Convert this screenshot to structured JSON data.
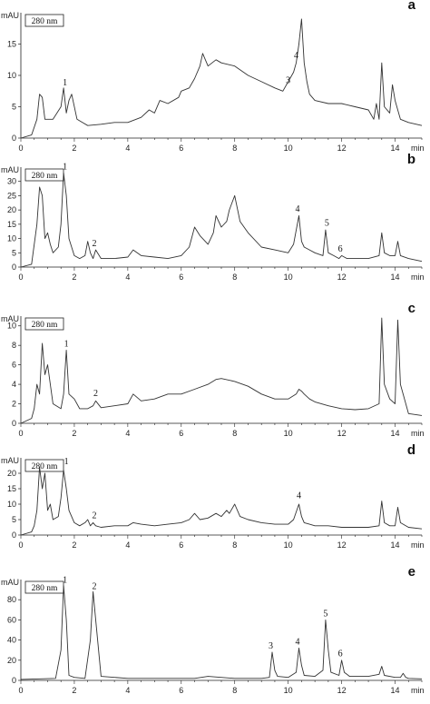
{
  "chart_data": [
    {
      "type": "line",
      "panel_label": "a",
      "wavelength_label": "280 nm",
      "ylabel": "mAU",
      "xlabel": "min",
      "xlim": [
        0,
        15
      ],
      "ylim": [
        0,
        20
      ],
      "xticks": [
        0,
        2,
        4,
        6,
        8,
        10,
        12,
        14
      ],
      "yticks": [
        0,
        5,
        10,
        15
      ],
      "series": [
        {
          "x": [
            0,
            0.4,
            0.6,
            0.7,
            0.8,
            0.9,
            1.2,
            1.5,
            1.6,
            1.7,
            1.8,
            1.9,
            2.1,
            2.3,
            2.5,
            3,
            3.5,
            4,
            4.5,
            4.8,
            5,
            5.2,
            5.5,
            5.9,
            6,
            6.3,
            6.5,
            6.7,
            6.8,
            7,
            7.3,
            7.5,
            8,
            8.5,
            9,
            9.5,
            9.8,
            10,
            10.2,
            10.3,
            10.4,
            10.5,
            10.6,
            10.7,
            10.8,
            11,
            11.5,
            12,
            12.5,
            13,
            13.2,
            13.3,
            13.4,
            13.5,
            13.6,
            13.8,
            13.9,
            14,
            14.2,
            14.5,
            15
          ],
          "y": [
            0,
            0.5,
            3,
            7,
            6.5,
            3,
            3,
            5,
            8,
            4,
            6,
            7,
            3,
            2.5,
            2,
            2.2,
            2.5,
            2.5,
            3.3,
            4.5,
            4,
            6,
            5.5,
            6.5,
            7.5,
            8,
            9.5,
            11.5,
            13.5,
            11.5,
            12.5,
            12,
            11.5,
            10,
            9,
            8,
            7.5,
            9,
            10.5,
            12,
            15,
            19,
            12,
            9,
            7,
            6,
            5.5,
            5.5,
            5,
            4.5,
            3,
            5.5,
            3,
            12,
            5,
            4,
            8.5,
            6,
            3,
            2.5,
            2
          ]
        }
      ],
      "peak_labels": [
        {
          "text": "1",
          "x": 1.65,
          "y": 8
        },
        {
          "text": "3",
          "x": 10.0,
          "y": 8.3
        },
        {
          "text": "4",
          "x": 10.3,
          "y": 12.3
        }
      ]
    },
    {
      "type": "line",
      "panel_label": "b",
      "wavelength_label": "280 nm",
      "ylabel": "mAU",
      "xlabel": "min",
      "xlim": [
        0,
        15
      ],
      "ylim": [
        0,
        35
      ],
      "xticks": [
        0,
        2,
        4,
        6,
        8,
        10,
        12,
        14
      ],
      "yticks": [
        0,
        5,
        10,
        15,
        20,
        25,
        30
      ],
      "series": [
        {
          "x": [
            0,
            0.4,
            0.6,
            0.7,
            0.8,
            0.9,
            1,
            1.1,
            1.2,
            1.4,
            1.5,
            1.6,
            1.7,
            1.8,
            2,
            2.2,
            2.4,
            2.5,
            2.6,
            2.7,
            2.8,
            3,
            3.5,
            4,
            4.2,
            4.5,
            5,
            5.5,
            6,
            6.3,
            6.5,
            6.7,
            7,
            7.2,
            7.3,
            7.5,
            7.7,
            7.8,
            8,
            8.2,
            8.5,
            9,
            9.5,
            10,
            10.2,
            10.4,
            10.5,
            10.6,
            10.8,
            11,
            11.3,
            11.4,
            11.5,
            11.7,
            11.9,
            12,
            12.2,
            12.5,
            13,
            13.4,
            13.5,
            13.6,
            13.8,
            14,
            14.1,
            14.2,
            14.5,
            15
          ],
          "y": [
            0,
            1,
            15,
            28,
            25,
            10,
            12,
            8,
            5,
            7,
            15,
            33,
            25,
            10,
            4,
            3,
            4,
            9,
            5,
            3,
            6,
            3,
            3,
            3.5,
            6,
            4,
            3.5,
            3,
            4,
            7,
            14,
            11,
            8,
            12,
            18,
            14,
            16,
            20,
            25,
            16,
            12,
            7,
            6,
            5,
            8,
            18,
            9,
            7,
            6,
            5,
            4,
            13,
            5,
            4,
            3,
            4,
            3,
            3,
            3,
            4,
            12,
            5,
            4,
            4,
            9,
            4,
            3,
            2
          ]
        }
      ],
      "peak_labels": [
        {
          "text": "1",
          "x": 1.65,
          "y": 33.3
        },
        {
          "text": "2",
          "x": 2.75,
          "y": 6.3
        },
        {
          "text": "4",
          "x": 10.35,
          "y": 18.5
        },
        {
          "text": "5",
          "x": 11.45,
          "y": 13.5
        },
        {
          "text": "6",
          "x": 11.95,
          "y": 4.5
        }
      ]
    },
    {
      "type": "line",
      "panel_label": "c",
      "wavelength_label": "280 nm",
      "ylabel": "mAU",
      "xlabel": "min",
      "xlim": [
        0,
        15
      ],
      "ylim": [
        0,
        11
      ],
      "xticks": [
        0,
        2,
        4,
        6,
        8,
        10,
        12,
        14
      ],
      "yticks": [
        0,
        2,
        4,
        6,
        8,
        10
      ],
      "series": [
        {
          "x": [
            0,
            0.4,
            0.5,
            0.6,
            0.7,
            0.8,
            0.9,
            1,
            1.2,
            1.5,
            1.6,
            1.7,
            1.8,
            2,
            2.2,
            2.5,
            2.7,
            2.8,
            3,
            3.5,
            4,
            4.2,
            4.5,
            5,
            5.5,
            6,
            6.5,
            7,
            7.3,
            7.5,
            8,
            8.5,
            9,
            9.5,
            10,
            10.3,
            10.4,
            10.5,
            10.6,
            10.8,
            11,
            11.5,
            12,
            12.5,
            13,
            13.4,
            13.5,
            13.6,
            13.8,
            14,
            14.1,
            14.2,
            14.5,
            15
          ],
          "y": [
            0,
            0.5,
            1.5,
            4,
            3,
            8.2,
            5,
            6,
            2,
            1.5,
            3,
            7.5,
            3,
            2.5,
            1.5,
            1.5,
            1.8,
            2.3,
            1.6,
            1.8,
            2,
            3,
            2.3,
            2.5,
            3,
            3,
            3.5,
            4,
            4.5,
            4.6,
            4.3,
            3.8,
            3,
            2.5,
            2.5,
            3,
            3.5,
            3.3,
            3,
            2.5,
            2.2,
            1.8,
            1.5,
            1.4,
            1.5,
            2,
            10.8,
            4,
            2.5,
            2,
            10.6,
            4,
            1,
            0.8
          ]
        }
      ],
      "peak_labels": [
        {
          "text": "1",
          "x": 1.7,
          "y": 7.6
        },
        {
          "text": "2",
          "x": 2.8,
          "y": 2.5
        }
      ]
    },
    {
      "type": "line",
      "panel_label": "d",
      "wavelength_label": "280 nm",
      "ylabel": "mAU",
      "xlabel": "min",
      "xlim": [
        0,
        15
      ],
      "ylim": [
        0,
        25
      ],
      "xticks": [
        0,
        2,
        4,
        6,
        8,
        10,
        12,
        14
      ],
      "yticks": [
        0,
        5,
        10,
        15,
        20
      ],
      "series": [
        {
          "x": [
            0,
            0.4,
            0.5,
            0.6,
            0.7,
            0.8,
            0.9,
            1,
            1.1,
            1.2,
            1.4,
            1.5,
            1.6,
            1.7,
            1.8,
            2,
            2.2,
            2.4,
            2.5,
            2.6,
            2.7,
            2.8,
            3,
            3.5,
            4,
            4.2,
            4.5,
            5,
            5.5,
            6,
            6.3,
            6.5,
            6.7,
            7,
            7.3,
            7.5,
            7.7,
            7.8,
            8,
            8.2,
            8.5,
            9,
            9.5,
            10,
            10.2,
            10.4,
            10.5,
            10.6,
            10.8,
            11,
            11.5,
            12,
            12.5,
            13,
            13.4,
            13.5,
            13.6,
            13.8,
            14,
            14.1,
            14.2,
            14.5,
            15
          ],
          "y": [
            0,
            1,
            3,
            8,
            22,
            15,
            20,
            8,
            10,
            5,
            6,
            12,
            21,
            15,
            8,
            4,
            3,
            4,
            5,
            3,
            4,
            3,
            2.5,
            3,
            3,
            4,
            3.5,
            3,
            3.5,
            4,
            5,
            7,
            5,
            5.5,
            7,
            6,
            8,
            7,
            10,
            6,
            5,
            4,
            3.5,
            3.5,
            5,
            10,
            6,
            4,
            3.5,
            3,
            3,
            2.5,
            2.5,
            2.5,
            3,
            11,
            4,
            3,
            3,
            9,
            4,
            2.5,
            2
          ]
        }
      ],
      "peak_labels": [
        {
          "text": "1",
          "x": 1.7,
          "y": 22
        },
        {
          "text": "2",
          "x": 2.75,
          "y": 4.5
        },
        {
          "text": "4",
          "x": 10.4,
          "y": 11
        }
      ]
    },
    {
      "type": "line",
      "panel_label": "e",
      "wavelength_label": "280 nm",
      "ylabel": "mAU",
      "xlabel": "min",
      "xlim": [
        0,
        15
      ],
      "ylim": [
        0,
        100
      ],
      "xticks": [
        0,
        2,
        4,
        6,
        8,
        10,
        12,
        14
      ],
      "yticks": [
        0,
        20,
        40,
        60,
        80
      ],
      "series": [
        {
          "x": [
            0,
            1.3,
            1.5,
            1.6,
            1.7,
            1.8,
            2,
            2.4,
            2.6,
            2.7,
            2.8,
            3,
            4,
            5,
            6,
            6.5,
            7,
            8,
            9,
            9.3,
            9.4,
            9.5,
            9.6,
            10,
            10.3,
            10.4,
            10.5,
            10.6,
            11,
            11.3,
            11.4,
            11.5,
            11.6,
            11.9,
            12,
            12.1,
            12.3,
            13,
            13.4,
            13.5,
            13.6,
            14,
            14.2,
            14.3,
            14.4,
            14.5,
            15
          ],
          "y": [
            1,
            2,
            30,
            94,
            60,
            5,
            3,
            2,
            40,
            88,
            60,
            4,
            2,
            2,
            2,
            2,
            4,
            2,
            2,
            3,
            28,
            10,
            4,
            3,
            8,
            32,
            15,
            5,
            4,
            10,
            60,
            30,
            8,
            5,
            20,
            8,
            4,
            4,
            6,
            14,
            5,
            3,
            3,
            7,
            3,
            2,
            1.5
          ]
        }
      ],
      "peak_labels": [
        {
          "text": "1",
          "x": 1.65,
          "y": 94
        },
        {
          "text": "2",
          "x": 2.75,
          "y": 88
        },
        {
          "text": "3",
          "x": 9.35,
          "y": 29
        },
        {
          "text": "4",
          "x": 10.35,
          "y": 33
        },
        {
          "text": "5",
          "x": 11.4,
          "y": 61
        },
        {
          "text": "6",
          "x": 11.95,
          "y": 21
        }
      ]
    }
  ]
}
